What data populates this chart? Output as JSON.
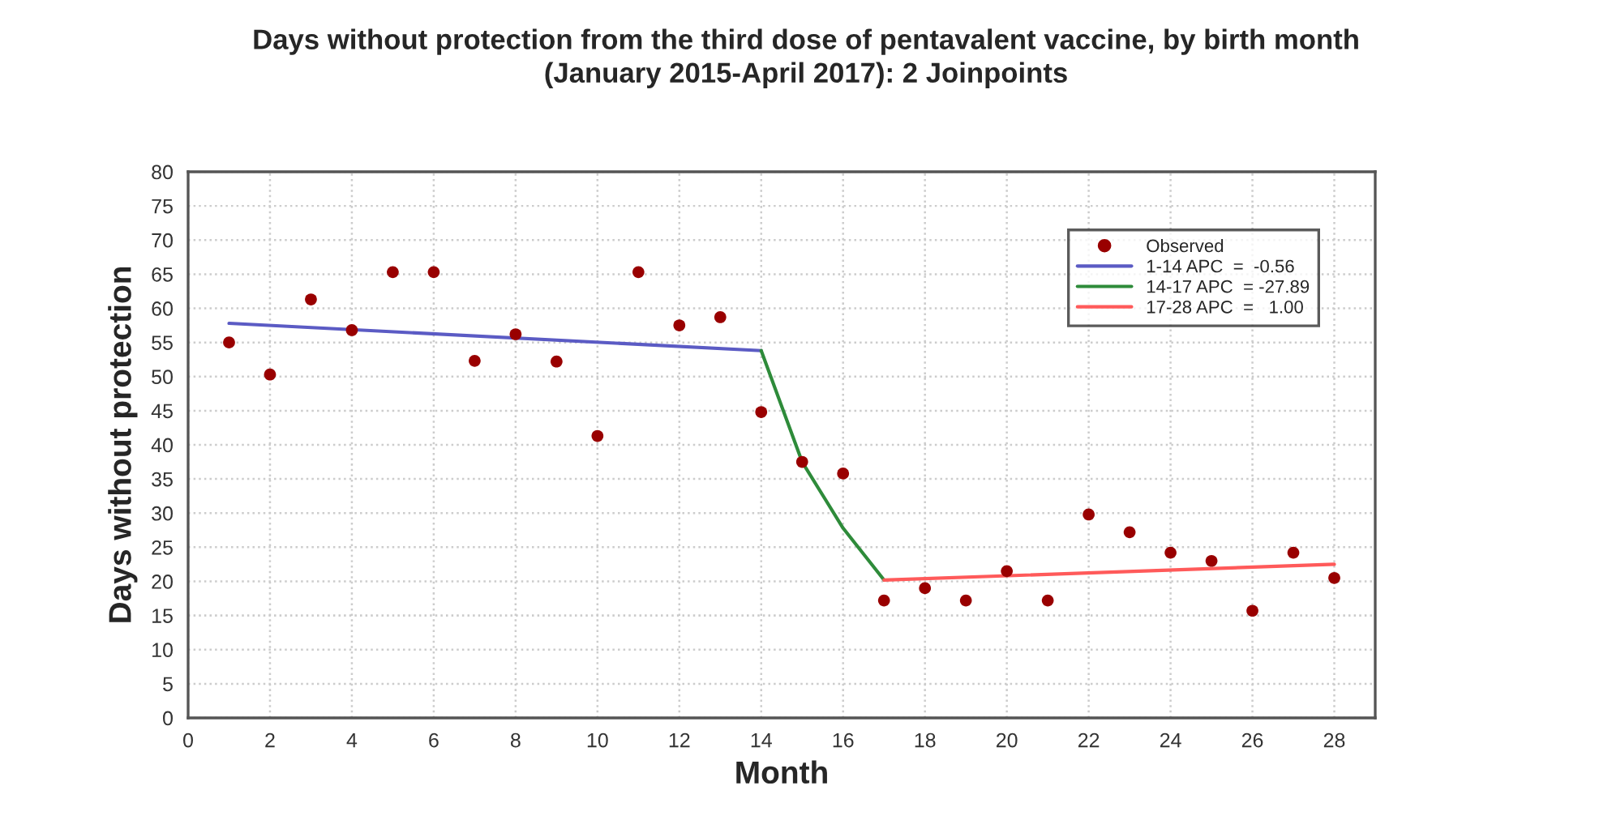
{
  "chart_data": {
    "type": "line",
    "title": "Days without protection from the third dose of pentavalent vaccine, by birth month\n(January 2015-April 2017): 2 Joinpoints",
    "xlabel": "Month",
    "ylabel": "Days without protection",
    "series": [
      {
        "name": "Observed",
        "type": "scatter",
        "color": "#990000",
        "marker": "circle",
        "x": [
          1,
          2,
          3,
          4,
          5,
          6,
          7,
          8,
          9,
          10,
          11,
          12,
          13,
          14,
          15,
          16,
          17,
          18,
          19,
          20,
          21,
          22,
          23,
          24,
          25,
          26,
          27,
          28
        ],
        "values": [
          55,
          50.3,
          61.3,
          56.8,
          65.3,
          65.3,
          52.3,
          56.2,
          52.2,
          41.3,
          65.3,
          57.5,
          58.7,
          44.8,
          37.5,
          35.8,
          17.2,
          19,
          17.2,
          21.5,
          17.2,
          29.8,
          27.2,
          24.2,
          23,
          15.7,
          24.2,
          20.5
        ]
      },
      {
        "name": "1-14 APC  =  -0.56",
        "color": "#5b5bc4",
        "x": [
          1,
          14
        ],
        "values": [
          57.8,
          53.8
        ]
      },
      {
        "name": "14-17 APC  = -27.89",
        "color": "#2e8b3a",
        "x": [
          14,
          15,
          16,
          17
        ],
        "values": [
          53.8,
          37.5,
          27.8,
          20.2
        ]
      },
      {
        "name": "17-28 APC  =   1.00",
        "color": "#ff5a5a",
        "x": [
          17,
          28
        ],
        "values": [
          20.2,
          22.5
        ]
      }
    ],
    "xlim": [
      0,
      29
    ],
    "xticks": [
      0,
      2,
      4,
      6,
      8,
      10,
      12,
      14,
      16,
      18,
      20,
      22,
      24,
      26,
      28
    ],
    "ylim": [
      0,
      80
    ],
    "yticks": [
      0,
      5,
      10,
      15,
      20,
      25,
      30,
      35,
      40,
      45,
      50,
      55,
      60,
      65,
      70,
      75,
      80
    ],
    "grid": true,
    "legend": "top right"
  }
}
